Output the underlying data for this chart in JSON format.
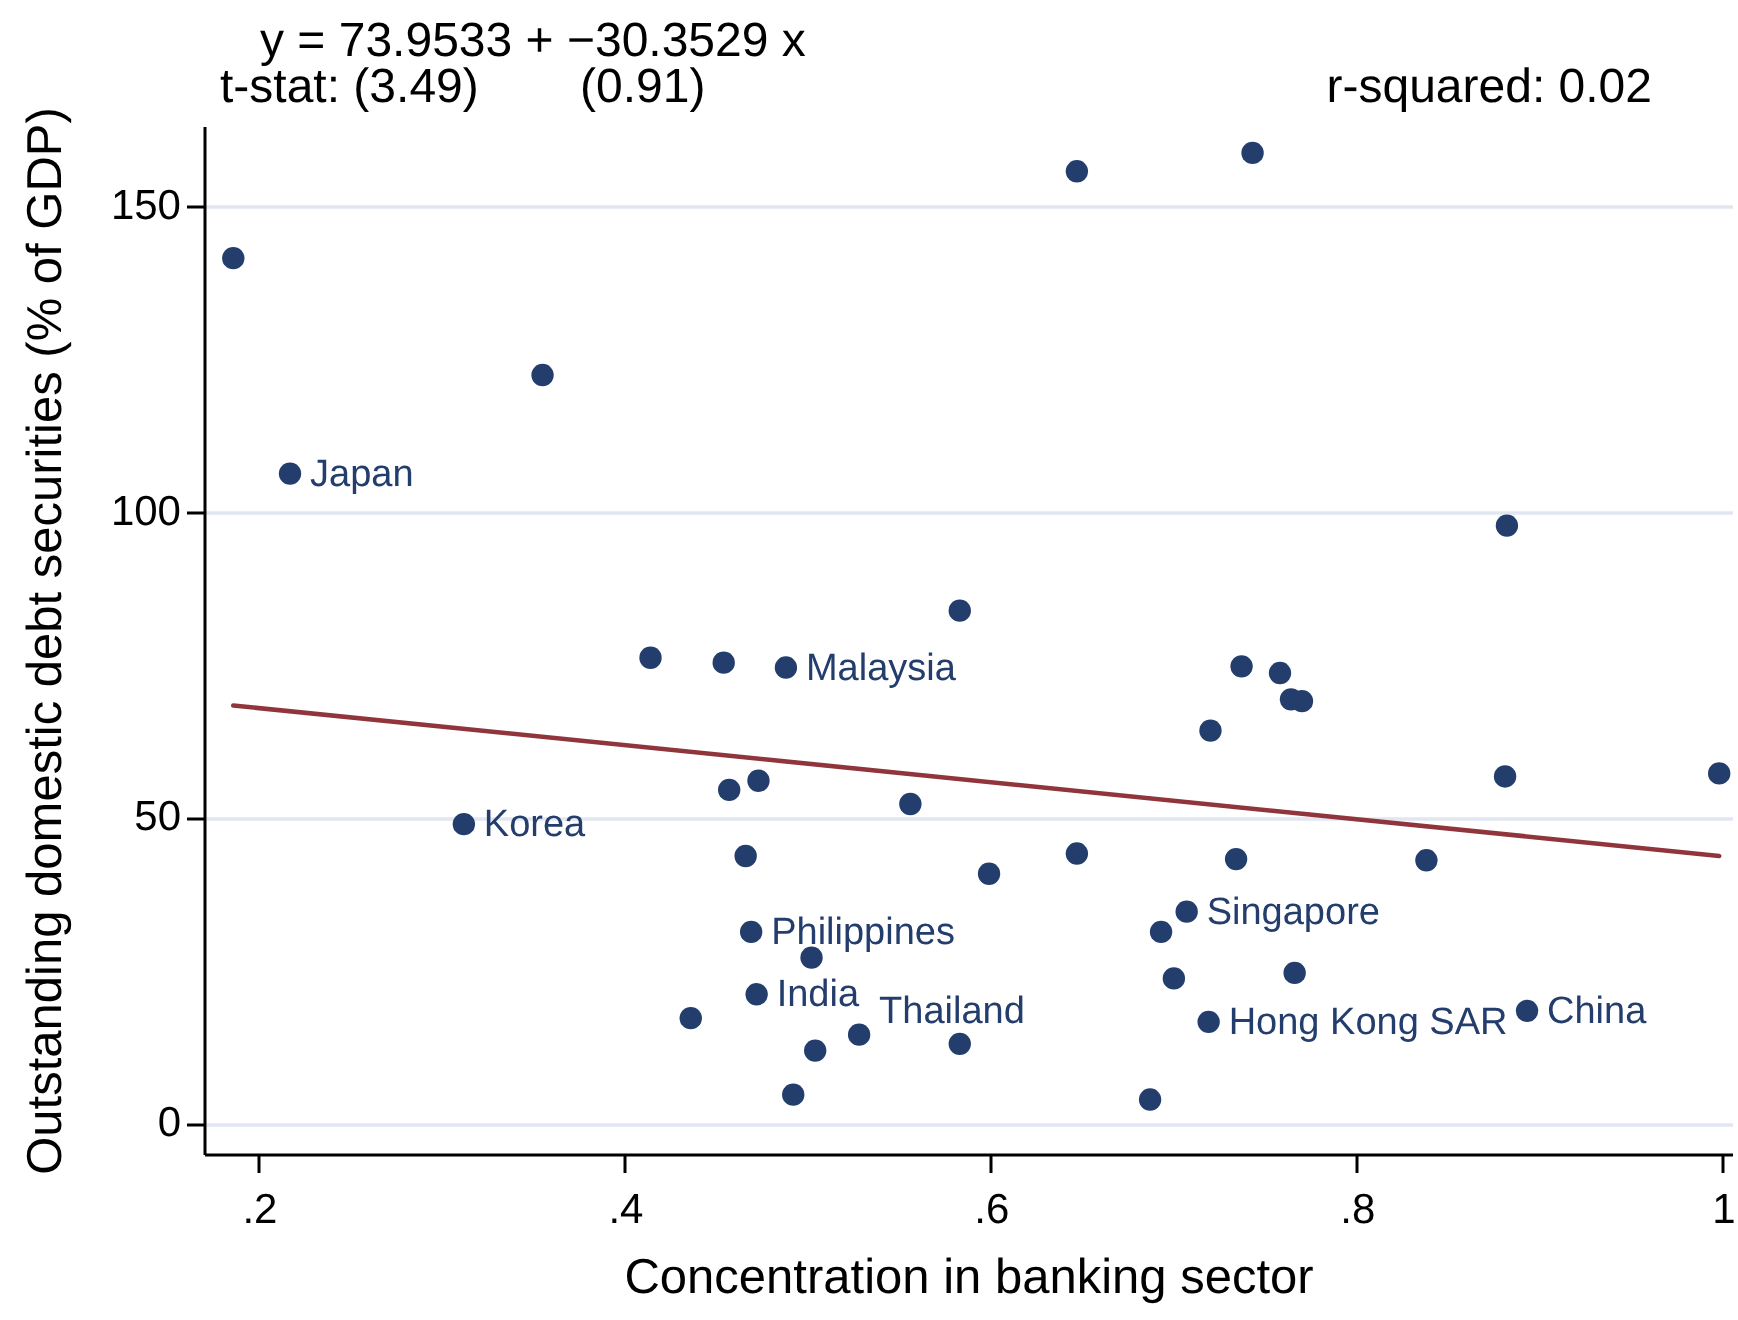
{
  "chart_data": {
    "type": "scatter",
    "title": "y = 73.9533 + −30.3529 x",
    "xlabel": "Concentration in banking sector",
    "ylabel": "Outstanding domestic debt securities (% of GDP)",
    "xlim": [
      0.17,
      1.005
    ],
    "ylim": [
      -5,
      163
    ],
    "xticks": [
      {
        "value": 0.2,
        "label": ".2"
      },
      {
        "value": 0.4,
        "label": ".4"
      },
      {
        "value": 0.6,
        "label": ".6"
      },
      {
        "value": 0.8,
        "label": ".8"
      },
      1
    ],
    "yticks": [
      0,
      50,
      100,
      150
    ],
    "grid": "y",
    "marker": "circle",
    "series": [
      {
        "color": "#233d6c",
        "x": [
          0.186,
          0.217,
          0.355,
          0.312,
          0.414,
          0.454,
          0.488,
          0.583,
          0.647,
          0.743,
          0.882,
          0.737,
          0.758,
          0.764,
          0.77,
          0.72,
          0.881,
          0.998,
          0.457,
          0.473,
          0.556,
          0.466,
          0.469,
          0.502,
          0.472,
          0.436,
          0.504,
          0.528,
          0.583,
          0.492,
          0.599,
          0.647,
          0.734,
          0.838,
          0.707,
          0.693,
          0.7,
          0.766,
          0.719,
          0.893,
          0.687
        ],
        "values": [
          141.4,
          106.2,
          122.3,
          48.9,
          76.1,
          75.3,
          74.5,
          83.8,
          155.6,
          158.6,
          97.7,
          74.7,
          73.6,
          69.3,
          69.0,
          64.2,
          56.7,
          57.2,
          54.5,
          56.0,
          52.2,
          43.7,
          31.3,
          27.1,
          21.1,
          17.2,
          11.9,
          14.5,
          13.0,
          4.7,
          40.8,
          44.1,
          43.2,
          43.0,
          34.6,
          31.3,
          23.7,
          24.6,
          16.6,
          18.4,
          3.9
        ]
      },
      {
        "type": "line",
        "color": "#90353b",
        "x": [
          0.186,
          0.998
        ],
        "values": [
          68.3,
          43.7
        ],
        "marker": "none"
      }
    ],
    "annotations": [
      "t-stat: (3.49)",
      "(0.91)",
      "r-squared: 0.02",
      {
        "text": "Japan",
        "x": 0.217,
        "y": 106.2
      },
      {
        "text": "Korea",
        "x": 0.312,
        "y": 48.9
      },
      {
        "text": "Malaysia",
        "x": 0.488,
        "y": 74.5
      },
      {
        "text": "Philippines",
        "x": 0.469,
        "y": 31.3
      },
      {
        "text": "India",
        "x": 0.472,
        "y": 21.1
      },
      {
        "text": "Thailand",
        "x": 0.528,
        "y": 14.5
      },
      {
        "text": "Singapore",
        "x": 0.707,
        "y": 34.6
      },
      {
        "text": "Hong Kong SAR",
        "x": 0.719,
        "y": 16.6
      },
      {
        "text": "China",
        "x": 0.893,
        "y": 18.4
      }
    ]
  }
}
